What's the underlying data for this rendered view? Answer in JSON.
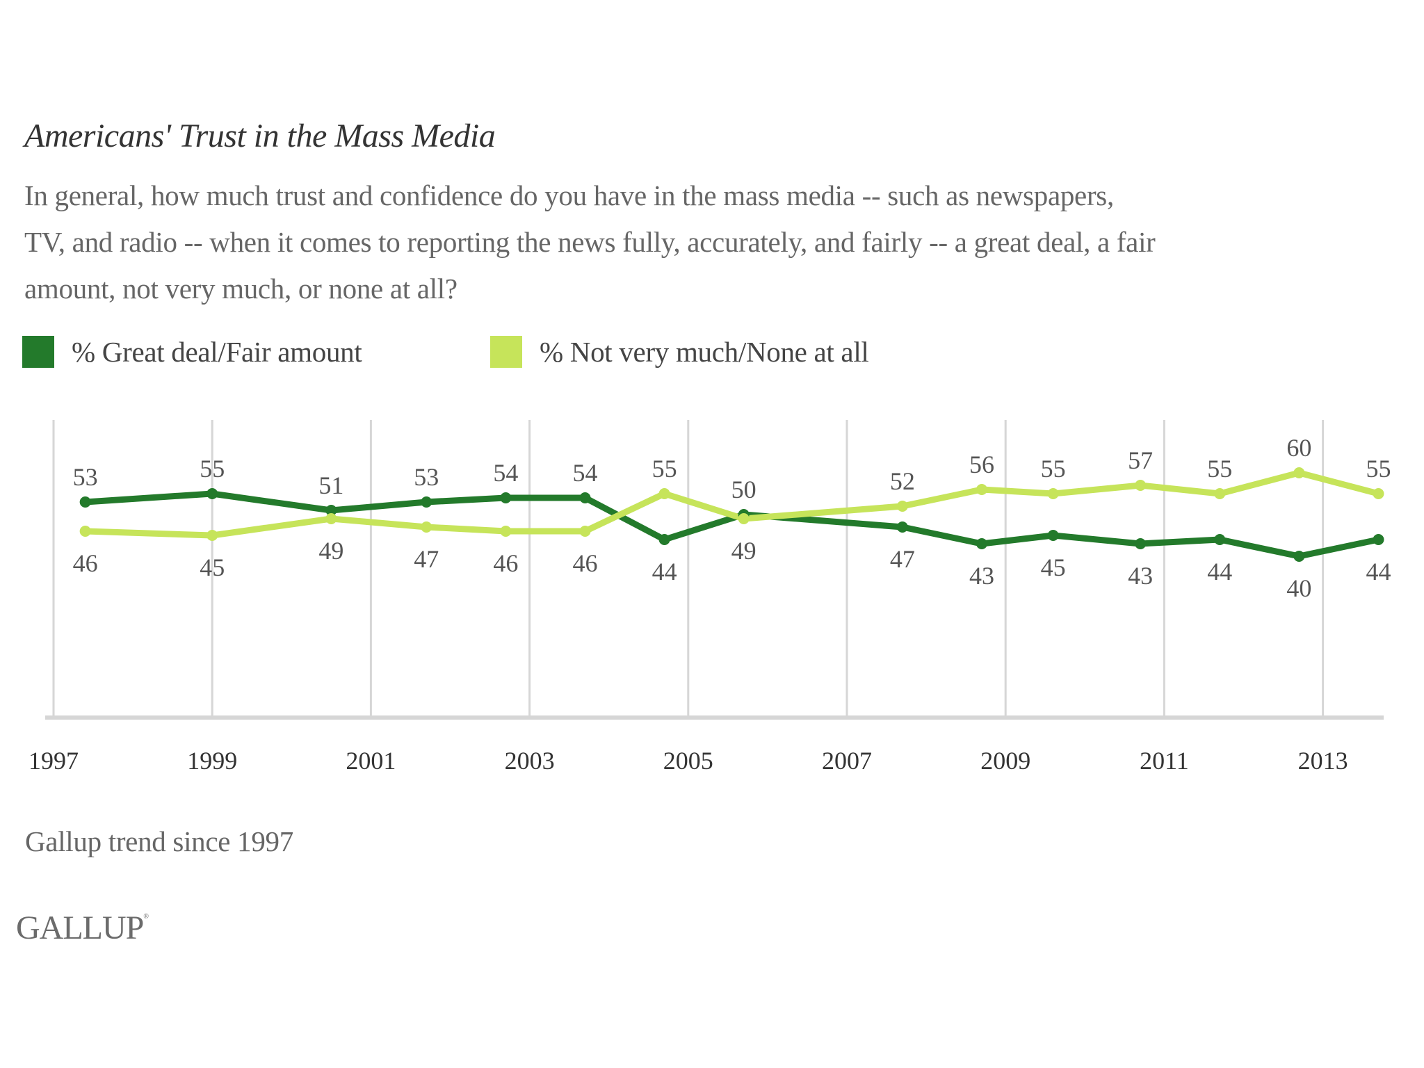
{
  "header": {
    "title": "Americans' Trust in the Mass Media",
    "subtitle_lines": [
      "In general, how much trust and confidence do you have in the mass media -- such as newspapers,",
      "TV, and radio -- when it comes to reporting the news fully, accurately, and fairly -- a great deal, a fair",
      "amount, not very much, or none at all?"
    ]
  },
  "legend": [
    {
      "label": "% Great deal/Fair amount",
      "color": "#237a2b"
    },
    {
      "label": "% Not very much/None at all",
      "color": "#c6e45a"
    }
  ],
  "footer": {
    "note": "Gallup trend since 1997",
    "logo": "GALLUP",
    "logo_mark": "®"
  },
  "chart_data": {
    "type": "line",
    "title": "Americans' Trust in the Mass Media",
    "xlabel": "",
    "ylabel": "",
    "x_ticks": [
      "1997",
      "1999",
      "2001",
      "2003",
      "2005",
      "2007",
      "2009",
      "2011",
      "2013"
    ],
    "x_tick_values": [
      1997,
      1999,
      2001,
      2003,
      2005,
      2007,
      2009,
      2011,
      2013
    ],
    "xlim": [
      1997,
      2014
    ],
    "ylim": [
      0,
      70
    ],
    "grid": "vertical",
    "legend_position": "top-left",
    "x": [
      1997.4,
      1999.0,
      2000.5,
      2001.7,
      2002.7,
      2003.7,
      2004.7,
      2005.7,
      2007.7,
      2008.7,
      2009.6,
      2010.7,
      2011.7,
      2012.7,
      2013.7
    ],
    "series": [
      {
        "name": "% Great deal/Fair amount",
        "color": "#237a2b",
        "values": [
          53,
          55,
          51,
          53,
          54,
          54,
          44,
          50,
          47,
          43,
          45,
          43,
          44,
          40,
          44
        ]
      },
      {
        "name": "% Not very much/None at all",
        "color": "#c6e45a",
        "values": [
          46,
          45,
          49,
          47,
          46,
          46,
          55,
          49,
          52,
          56,
          55,
          57,
          55,
          60,
          55
        ]
      }
    ]
  }
}
